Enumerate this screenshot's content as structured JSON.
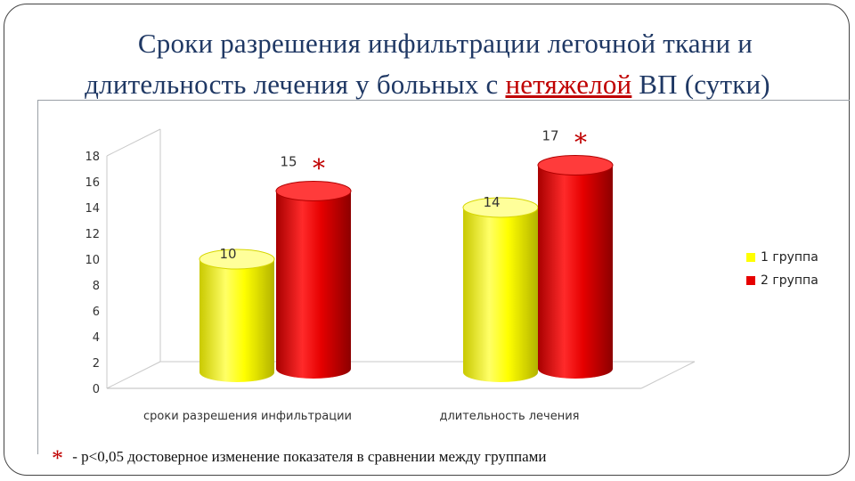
{
  "title": {
    "line1": "Сроки разрешения инфильтрации легочной ткани и",
    "line2_before": "длительность лечения у больных с ",
    "line2_highlight": "нетяжелой",
    "line2_after": " ВП (сутки)"
  },
  "chart_data": {
    "type": "bar",
    "title": "",
    "xlabel": "",
    "ylabel": "",
    "categories": [
      "сроки разрешения инфильтрации",
      "длительность лечения"
    ],
    "series": [
      {
        "name": "1 группа",
        "values": [
          10,
          14
        ],
        "color": "#ffff00"
      },
      {
        "name": "2 группа",
        "values": [
          15,
          17
        ],
        "color": "#e60000"
      }
    ],
    "ylim": [
      0,
      18
    ],
    "yticks": [
      "0",
      "2",
      "4",
      "6",
      "8",
      "10",
      "12",
      "14",
      "16",
      "18"
    ],
    "data_labels": [
      "10",
      "15",
      "14",
      "17"
    ],
    "significance_marks": [
      "*",
      "*"
    ],
    "grid": false,
    "legend_position": "right",
    "style": "3d-cylinder"
  },
  "footnote": {
    "star": "*",
    "text": " - p<0,05 достоверное изменение показателя в сравнении между группами"
  }
}
